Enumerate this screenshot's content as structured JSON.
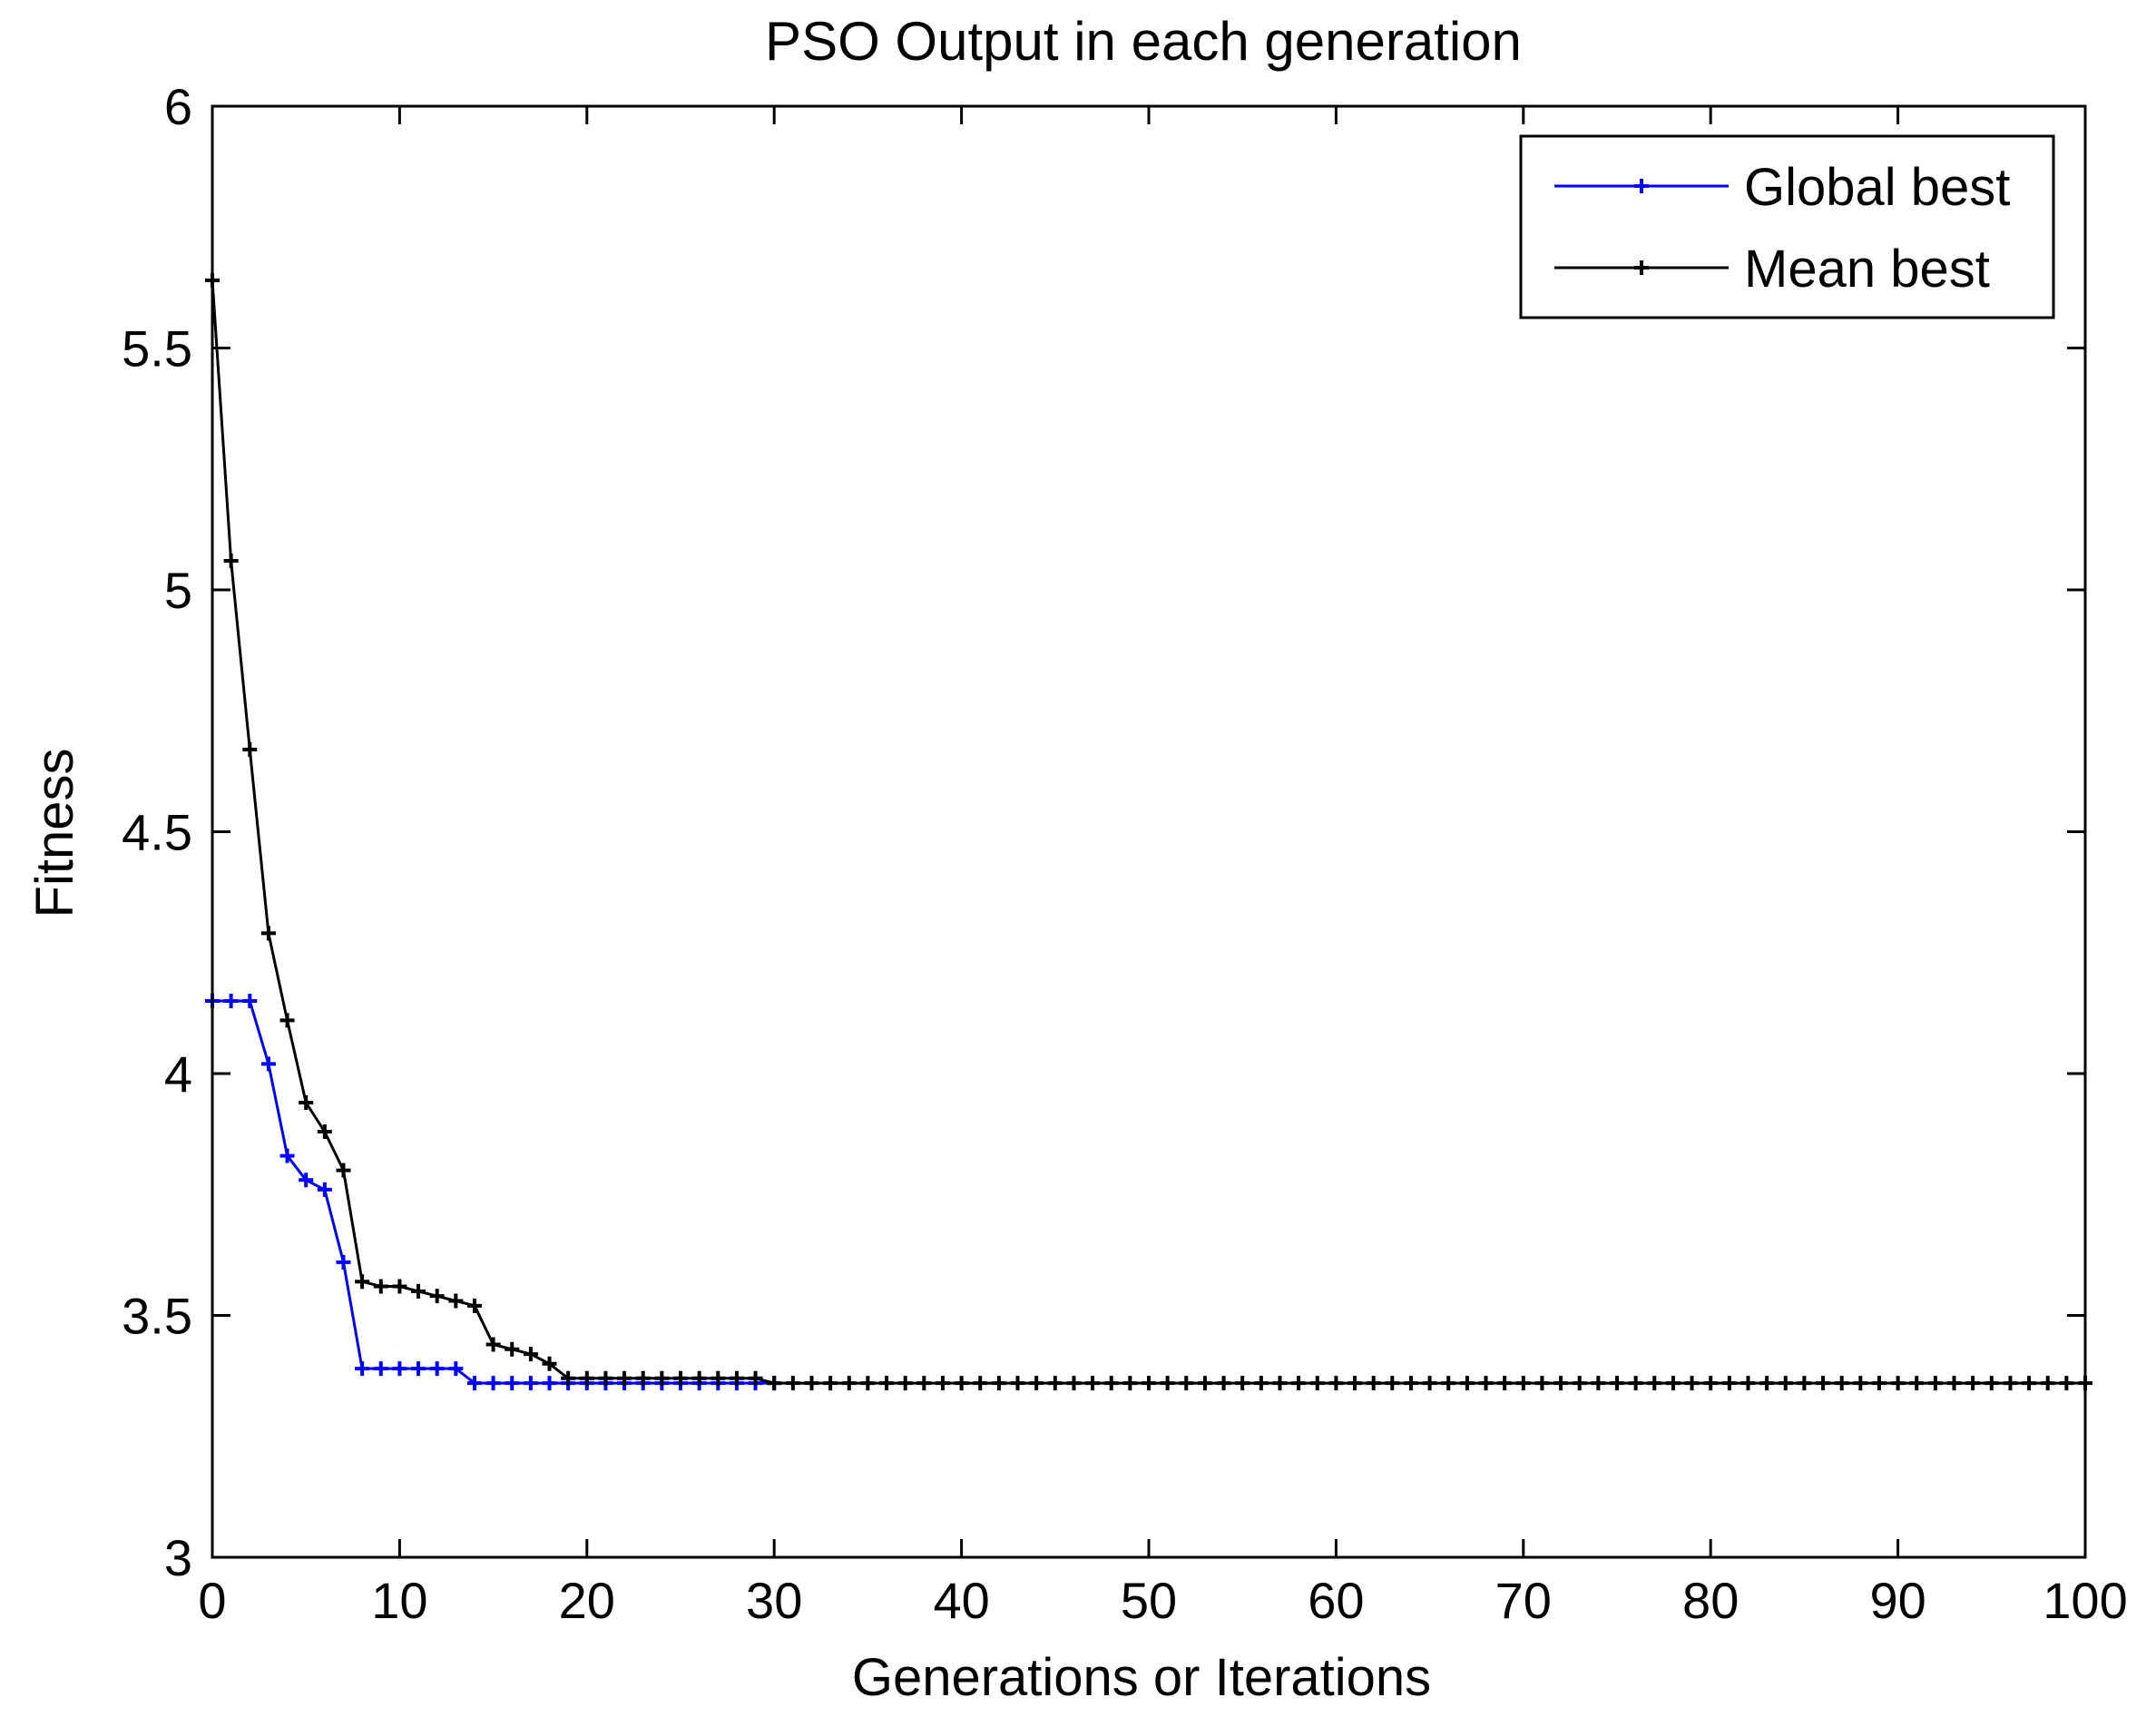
{
  "chart_data": {
    "type": "line",
    "title": "PSO Output in each generation",
    "xlabel": "Generations or Iterations",
    "ylabel": "Fitness",
    "xlim": [
      0,
      100
    ],
    "ylim": [
      3,
      6
    ],
    "xticks": [
      0,
      10,
      20,
      30,
      40,
      50,
      60,
      70,
      80,
      90,
      100
    ],
    "yticks": [
      3,
      3.5,
      4,
      4.5,
      5,
      5.5,
      6
    ],
    "xtick_labels": [
      "0",
      "10",
      "20",
      "30",
      "40",
      "50",
      "60",
      "70",
      "80",
      "90",
      "100"
    ],
    "ytick_labels": [
      "3",
      "3.5",
      "4",
      "4.5",
      "5",
      "5.5",
      "6"
    ],
    "grid": false,
    "legend_position": "top-right",
    "marker": "+",
    "series": [
      {
        "name": "Global best",
        "color": "#0000ff",
        "x": [
          0,
          1,
          2,
          3,
          4,
          5,
          6,
          7,
          8,
          9,
          10,
          11,
          12,
          13,
          14,
          15,
          16,
          17,
          18,
          19,
          20,
          21,
          22,
          23,
          24,
          25,
          26,
          27,
          28,
          29,
          30
        ],
        "y": [
          4.15,
          4.15,
          4.15,
          4.02,
          3.83,
          3.78,
          3.76,
          3.61,
          3.39,
          3.39,
          3.39,
          3.39,
          3.39,
          3.39,
          3.36,
          3.36,
          3.36,
          3.36,
          3.36,
          3.36,
          3.36,
          3.36,
          3.36,
          3.36,
          3.36,
          3.36,
          3.36,
          3.36,
          3.36,
          3.36,
          3.36
        ]
      },
      {
        "name": "Mean best",
        "color": "#000000",
        "x": [
          0,
          1,
          2,
          3,
          4,
          5,
          6,
          7,
          8,
          9,
          10,
          11,
          12,
          13,
          14,
          15,
          16,
          17,
          18,
          19,
          20,
          21,
          22,
          23,
          24,
          25,
          26,
          27,
          28,
          29,
          30,
          31,
          32,
          33,
          34,
          35,
          36,
          37,
          38,
          39,
          40,
          41,
          42,
          43,
          44,
          45,
          46,
          47,
          48,
          49,
          50,
          51,
          52,
          53,
          54,
          55,
          56,
          57,
          58,
          59,
          60,
          61,
          62,
          63,
          64,
          65,
          66,
          67,
          68,
          69,
          70,
          71,
          72,
          73,
          74,
          75,
          76,
          77,
          78,
          79,
          80,
          81,
          82,
          83,
          84,
          85,
          86,
          87,
          88,
          89,
          90,
          91,
          92,
          93,
          94,
          95,
          96,
          97,
          98,
          99,
          100
        ],
        "y": [
          5.64,
          5.06,
          4.67,
          4.29,
          4.11,
          3.94,
          3.88,
          3.8,
          3.57,
          3.56,
          3.56,
          3.55,
          3.54,
          3.53,
          3.52,
          3.44,
          3.43,
          3.42,
          3.4,
          3.37,
          3.37,
          3.37,
          3.37,
          3.37,
          3.37,
          3.37,
          3.37,
          3.37,
          3.37,
          3.37,
          3.36,
          3.36,
          3.36,
          3.36,
          3.36,
          3.36,
          3.36,
          3.36,
          3.36,
          3.36,
          3.36,
          3.36,
          3.36,
          3.36,
          3.36,
          3.36,
          3.36,
          3.36,
          3.36,
          3.36,
          3.36,
          3.36,
          3.36,
          3.36,
          3.36,
          3.36,
          3.36,
          3.36,
          3.36,
          3.36,
          3.36,
          3.36,
          3.36,
          3.36,
          3.36,
          3.36,
          3.36,
          3.36,
          3.36,
          3.36,
          3.36,
          3.36,
          3.36,
          3.36,
          3.36,
          3.36,
          3.36,
          3.36,
          3.36,
          3.36,
          3.36,
          3.36,
          3.36,
          3.36,
          3.36,
          3.36,
          3.36,
          3.36,
          3.36,
          3.36,
          3.36,
          3.36,
          3.36,
          3.36,
          3.36,
          3.36,
          3.36,
          3.36,
          3.36,
          3.36,
          3.36
        ]
      }
    ]
  }
}
